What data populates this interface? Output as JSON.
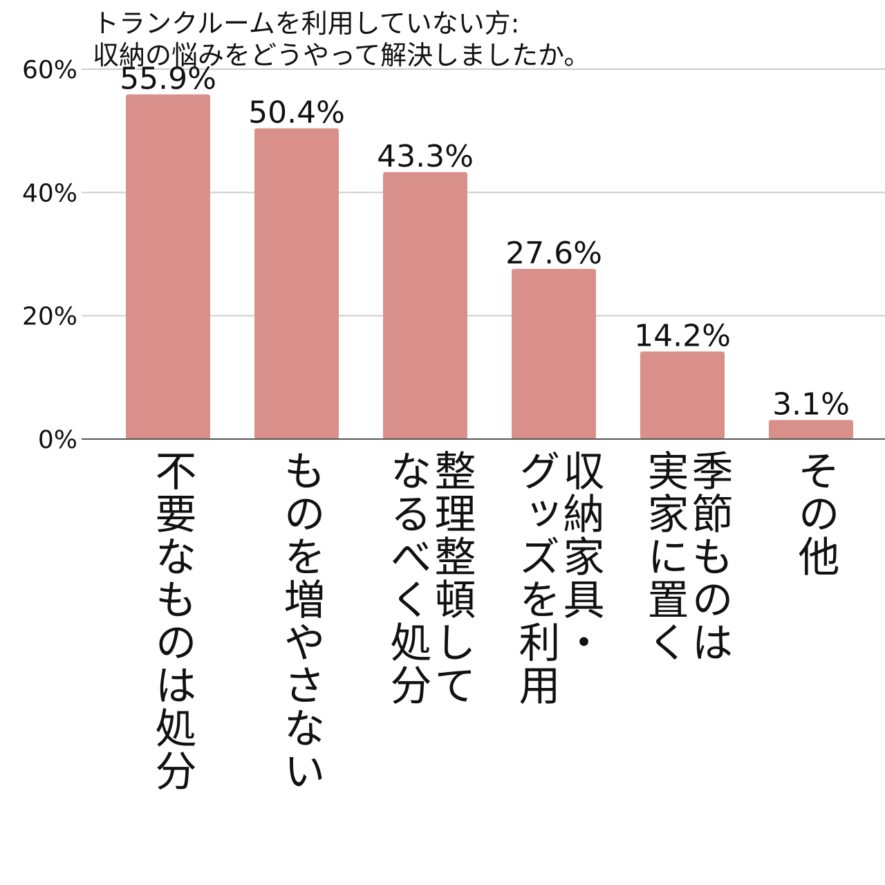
{
  "chart_data": {
    "type": "bar",
    "title_lines": [
      "トランクルームを利用していない方:",
      "収納の悩みをどうやって解決しましたか。"
    ],
    "categories": [
      "不要なものは処分",
      "ものを増やさない",
      "整理整頓して\nなるべく処分",
      "収納家具・\nグッズを利用",
      "季節ものは\n実家に置く",
      "その他"
    ],
    "values": [
      55.9,
      50.4,
      43.3,
      27.6,
      14.2,
      3.1
    ],
    "value_labels": [
      "55.9%",
      "50.4%",
      "43.3%",
      "27.6%",
      "14.2%",
      "3.1%"
    ],
    "y_ticks": [
      0,
      20,
      40,
      60
    ],
    "y_tick_labels": [
      "0%",
      "20%",
      "40%",
      "60%"
    ],
    "ylim": [
      0,
      60
    ],
    "xlabel": "",
    "ylabel": "",
    "grid": true,
    "bar_color": "#d9908a",
    "grid_color": "#cccccc",
    "axis_color": "#555555"
  }
}
